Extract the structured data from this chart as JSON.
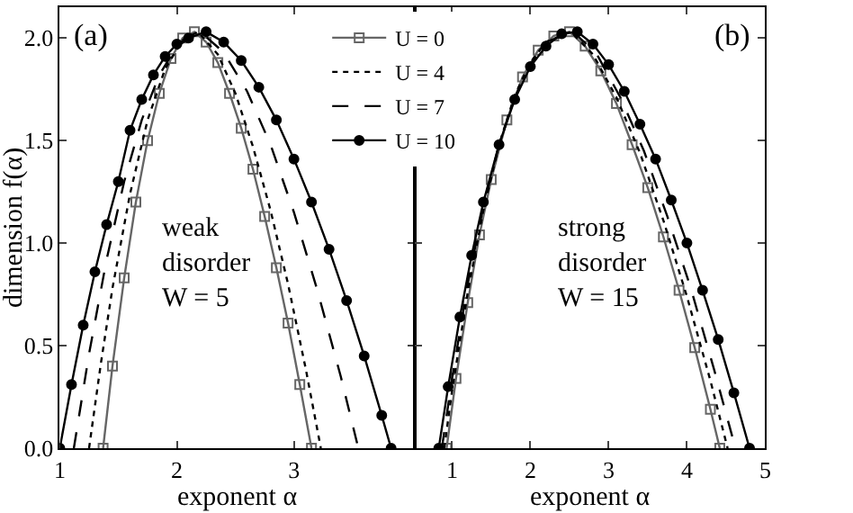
{
  "chart_data": [
    {
      "type": "line",
      "xlabel": "exponent α",
      "ylabel": "dimension f(α)",
      "xlim": [
        1,
        4.03
      ],
      "xticks": [
        1,
        2,
        3
      ],
      "ylim": [
        0,
        2.15
      ],
      "yticks": [
        {
          "value": 0,
          "label": "0.0"
        },
        0.5,
        {
          "value": 1,
          "label": "1.0"
        },
        1.5,
        {
          "value": 2,
          "label": "2.0"
        }
      ],
      "legend": "top right",
      "annotations": [
        "(a)",
        "weak\ndisorder\nW = 5"
      ],
      "series": [
        {
          "name": "U = 0",
          "color": "#666666",
          "marker": "square",
          "line_style": "solid",
          "x": [
            1.37,
            1.45,
            1.55,
            1.65,
            1.75,
            1.85,
            1.95,
            2.05,
            2.15,
            2.25,
            2.35,
            2.45,
            2.55,
            2.65,
            2.75,
            2.85,
            2.95,
            3.05,
            3.15
          ],
          "values": [
            0,
            0.4,
            0.83,
            1.2,
            1.5,
            1.73,
            1.9,
            2.0,
            2.03,
            1.98,
            1.88,
            1.73,
            1.56,
            1.36,
            1.13,
            0.88,
            0.61,
            0.31,
            0
          ]
        },
        {
          "name": "U = 4",
          "color": "#000000",
          "marker": "none",
          "line_style": "dotted",
          "x": [
            1.25,
            1.35,
            1.45,
            1.6,
            1.75,
            1.9,
            2.05,
            2.18,
            2.35,
            2.5,
            2.65,
            2.8,
            2.95,
            3.1,
            3.23
          ],
          "values": [
            0,
            0.41,
            0.78,
            1.24,
            1.6,
            1.85,
            1.99,
            2.03,
            1.92,
            1.73,
            1.47,
            1.16,
            0.8,
            0.39,
            0
          ]
        },
        {
          "name": "U = 7",
          "color": "#000000",
          "marker": "none",
          "line_style": "dashed",
          "x": [
            1.12,
            1.25,
            1.4,
            1.55,
            1.7,
            1.85,
            2.0,
            2.2,
            2.4,
            2.6,
            2.8,
            3.0,
            3.2,
            3.4,
            3.55
          ],
          "values": [
            0,
            0.46,
            0.92,
            1.3,
            1.6,
            1.82,
            1.96,
            2.03,
            1.93,
            1.74,
            1.48,
            1.15,
            0.77,
            0.35,
            0
          ]
        },
        {
          "name": "U = 10",
          "color": "#000000",
          "marker": "circle",
          "line_style": "solid",
          "x": [
            1.0,
            1.1,
            1.2,
            1.3,
            1.4,
            1.5,
            1.6,
            1.7,
            1.8,
            1.9,
            2.0,
            2.1,
            2.25,
            2.4,
            2.55,
            2.7,
            2.85,
            3.0,
            3.15,
            3.3,
            3.45,
            3.6,
            3.75,
            3.83
          ],
          "values": [
            0,
            0.31,
            0.6,
            0.86,
            1.09,
            1.3,
            1.55,
            1.7,
            1.82,
            1.91,
            1.97,
            2.0,
            2.03,
            1.98,
            1.89,
            1.76,
            1.6,
            1.41,
            1.2,
            0.97,
            0.72,
            0.45,
            0.16,
            0
          ]
        }
      ]
    },
    {
      "type": "line",
      "xlabel": "exponent α",
      "xlim": [
        0.52,
        5
      ],
      "xticks": [
        1,
        2,
        3,
        4,
        5
      ],
      "ylim": [
        0,
        2.15
      ],
      "yticks": [
        0,
        0.5,
        1,
        1.5,
        2
      ],
      "tick_labels": "x",
      "annotations": [
        "(b)",
        "strong\ndisorder\nW = 15"
      ],
      "series": [
        {
          "color": "#666666",
          "marker": "square",
          "line_style": "solid",
          "x": [
            0.93,
            1.05,
            1.2,
            1.35,
            1.5,
            1.7,
            1.9,
            2.1,
            2.3,
            2.5,
            2.7,
            2.9,
            3.1,
            3.3,
            3.5,
            3.7,
            3.9,
            4.1,
            4.3,
            4.42
          ],
          "values": [
            0,
            0.34,
            0.71,
            1.04,
            1.31,
            1.6,
            1.81,
            1.94,
            2.01,
            2.03,
            1.96,
            1.84,
            1.68,
            1.48,
            1.27,
            1.03,
            0.77,
            0.49,
            0.19,
            0
          ]
        },
        {
          "color": "#000000",
          "marker": "none",
          "line_style": "dotted",
          "x": [
            0.9,
            1.0,
            1.2,
            1.4,
            1.6,
            1.8,
            2.0,
            2.2,
            2.52,
            2.8,
            3.1,
            3.4,
            3.7,
            4.0,
            4.3,
            4.52
          ],
          "values": [
            0,
            0.28,
            0.76,
            1.16,
            1.48,
            1.72,
            1.88,
            1.98,
            2.03,
            1.92,
            1.71,
            1.44,
            1.11,
            0.74,
            0.33,
            0
          ]
        },
        {
          "color": "#000000",
          "marker": "none",
          "line_style": "dashed",
          "x": [
            0.87,
            1.0,
            1.2,
            1.4,
            1.6,
            1.8,
            2.0,
            2.2,
            2.55,
            2.85,
            3.15,
            3.45,
            3.75,
            4.05,
            4.35,
            4.62
          ],
          "values": [
            0,
            0.34,
            0.8,
            1.18,
            1.48,
            1.71,
            1.87,
            1.98,
            2.03,
            1.92,
            1.71,
            1.45,
            1.13,
            0.78,
            0.38,
            0
          ]
        },
        {
          "color": "#000000",
          "marker": "circle",
          "line_style": "solid",
          "x": [
            0.83,
            0.95,
            1.1,
            1.25,
            1.4,
            1.6,
            1.8,
            2.0,
            2.2,
            2.4,
            2.6,
            2.8,
            3.0,
            3.2,
            3.4,
            3.6,
            3.8,
            4.0,
            4.2,
            4.4,
            4.6,
            4.8
          ],
          "values": [
            0,
            0.3,
            0.64,
            0.94,
            1.2,
            1.48,
            1.7,
            1.86,
            1.96,
            2.02,
            2.03,
            1.97,
            1.87,
            1.74,
            1.58,
            1.41,
            1.21,
            1.0,
            0.77,
            0.53,
            0.27,
            0
          ]
        }
      ]
    }
  ]
}
